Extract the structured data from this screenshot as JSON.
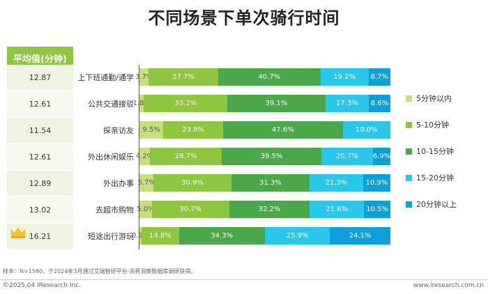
{
  "title": "不同场景下单次骑行时间",
  "avg_header": "平均值(分钟)",
  "chart_data": {
    "type": "bar",
    "stacked": true,
    "orientation": "horizontal",
    "categories": [
      "上下班通勤/通学",
      "公共交通接驳",
      "探亲访友",
      "外出休闲娱乐",
      "外出办事",
      "去超市购物",
      "短途出行游玩"
    ],
    "averages": [
      "12.87",
      "12.61",
      "11.54",
      "12.61",
      "12.89",
      "13.02",
      "16.21"
    ],
    "series": [
      {
        "name": "5分钟以内",
        "color": "#c5e07a",
        "values": [
          3.7,
          1.8,
          9.5,
          4.2,
          5.7,
          5.0,
          0.9
        ]
      },
      {
        "name": "5-10分钟",
        "color": "#8dc63f",
        "values": [
          27.7,
          33.2,
          23.8,
          28.7,
          30.9,
          30.7,
          14.8
        ]
      },
      {
        "name": "10-15分钟",
        "color": "#4aa84a",
        "values": [
          40.7,
          39.1,
          47.6,
          39.5,
          31.3,
          32.2,
          34.3
        ]
      },
      {
        "name": "15-20分钟",
        "color": "#28c8ec",
        "values": [
          19.2,
          17.3,
          19.0,
          20.7,
          21.3,
          21.6,
          25.9
        ]
      },
      {
        "name": "20分钟以上",
        "color": "#0aa0da",
        "values": [
          8.7,
          8.6,
          0,
          6.9,
          10.9,
          10.5,
          24.1
        ]
      }
    ],
    "highlight_category": "短途出行游玩",
    "highlight_icon": "crown-icon"
  },
  "footnote": "样本：N=1580，于2024年3月通过艾瑞智研平台-消费洞察数据库调研获得。",
  "footer_left": "©2025.04 iResearch Inc.",
  "footer_right": "www.iresearch.com.cn"
}
